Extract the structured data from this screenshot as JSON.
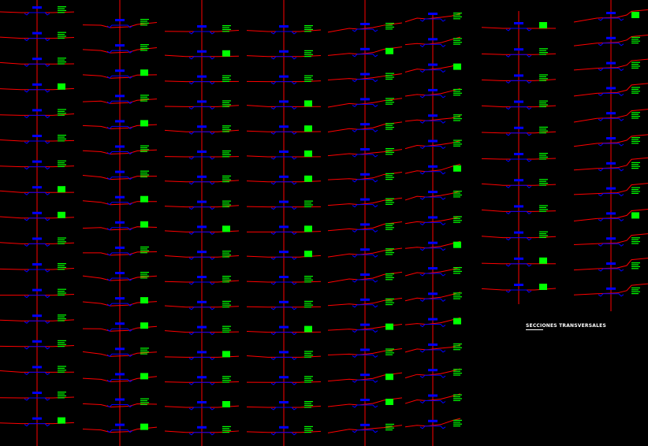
{
  "drawing": {
    "title": "SECCIONES TRANSVERSALES",
    "background": "#000000",
    "colors": {
      "centerline": "#ff0000",
      "profile": "#ff0000",
      "platform": "#0000ff",
      "section_ref": "#0000ff",
      "annotation": "#00ff00"
    },
    "columns": [
      {
        "id": "col-1",
        "sections": 17,
        "profile_style": "flat-ditch"
      },
      {
        "id": "col-2",
        "sections": 17,
        "profile_style": "cut-fill"
      },
      {
        "id": "col-3",
        "sections": 17,
        "profile_style": "flat-ditch"
      },
      {
        "id": "col-4",
        "sections": 17,
        "profile_style": "flat-ditch"
      },
      {
        "id": "col-5",
        "sections": 17,
        "profile_style": "slope-up"
      },
      {
        "id": "col-6",
        "sections": 17,
        "profile_style": "slope-up"
      },
      {
        "id": "col-7",
        "sections": 11,
        "profile_style": "flat-ditch"
      },
      {
        "id": "col-8",
        "sections": 12,
        "profile_style": "steep-right"
      }
    ]
  }
}
